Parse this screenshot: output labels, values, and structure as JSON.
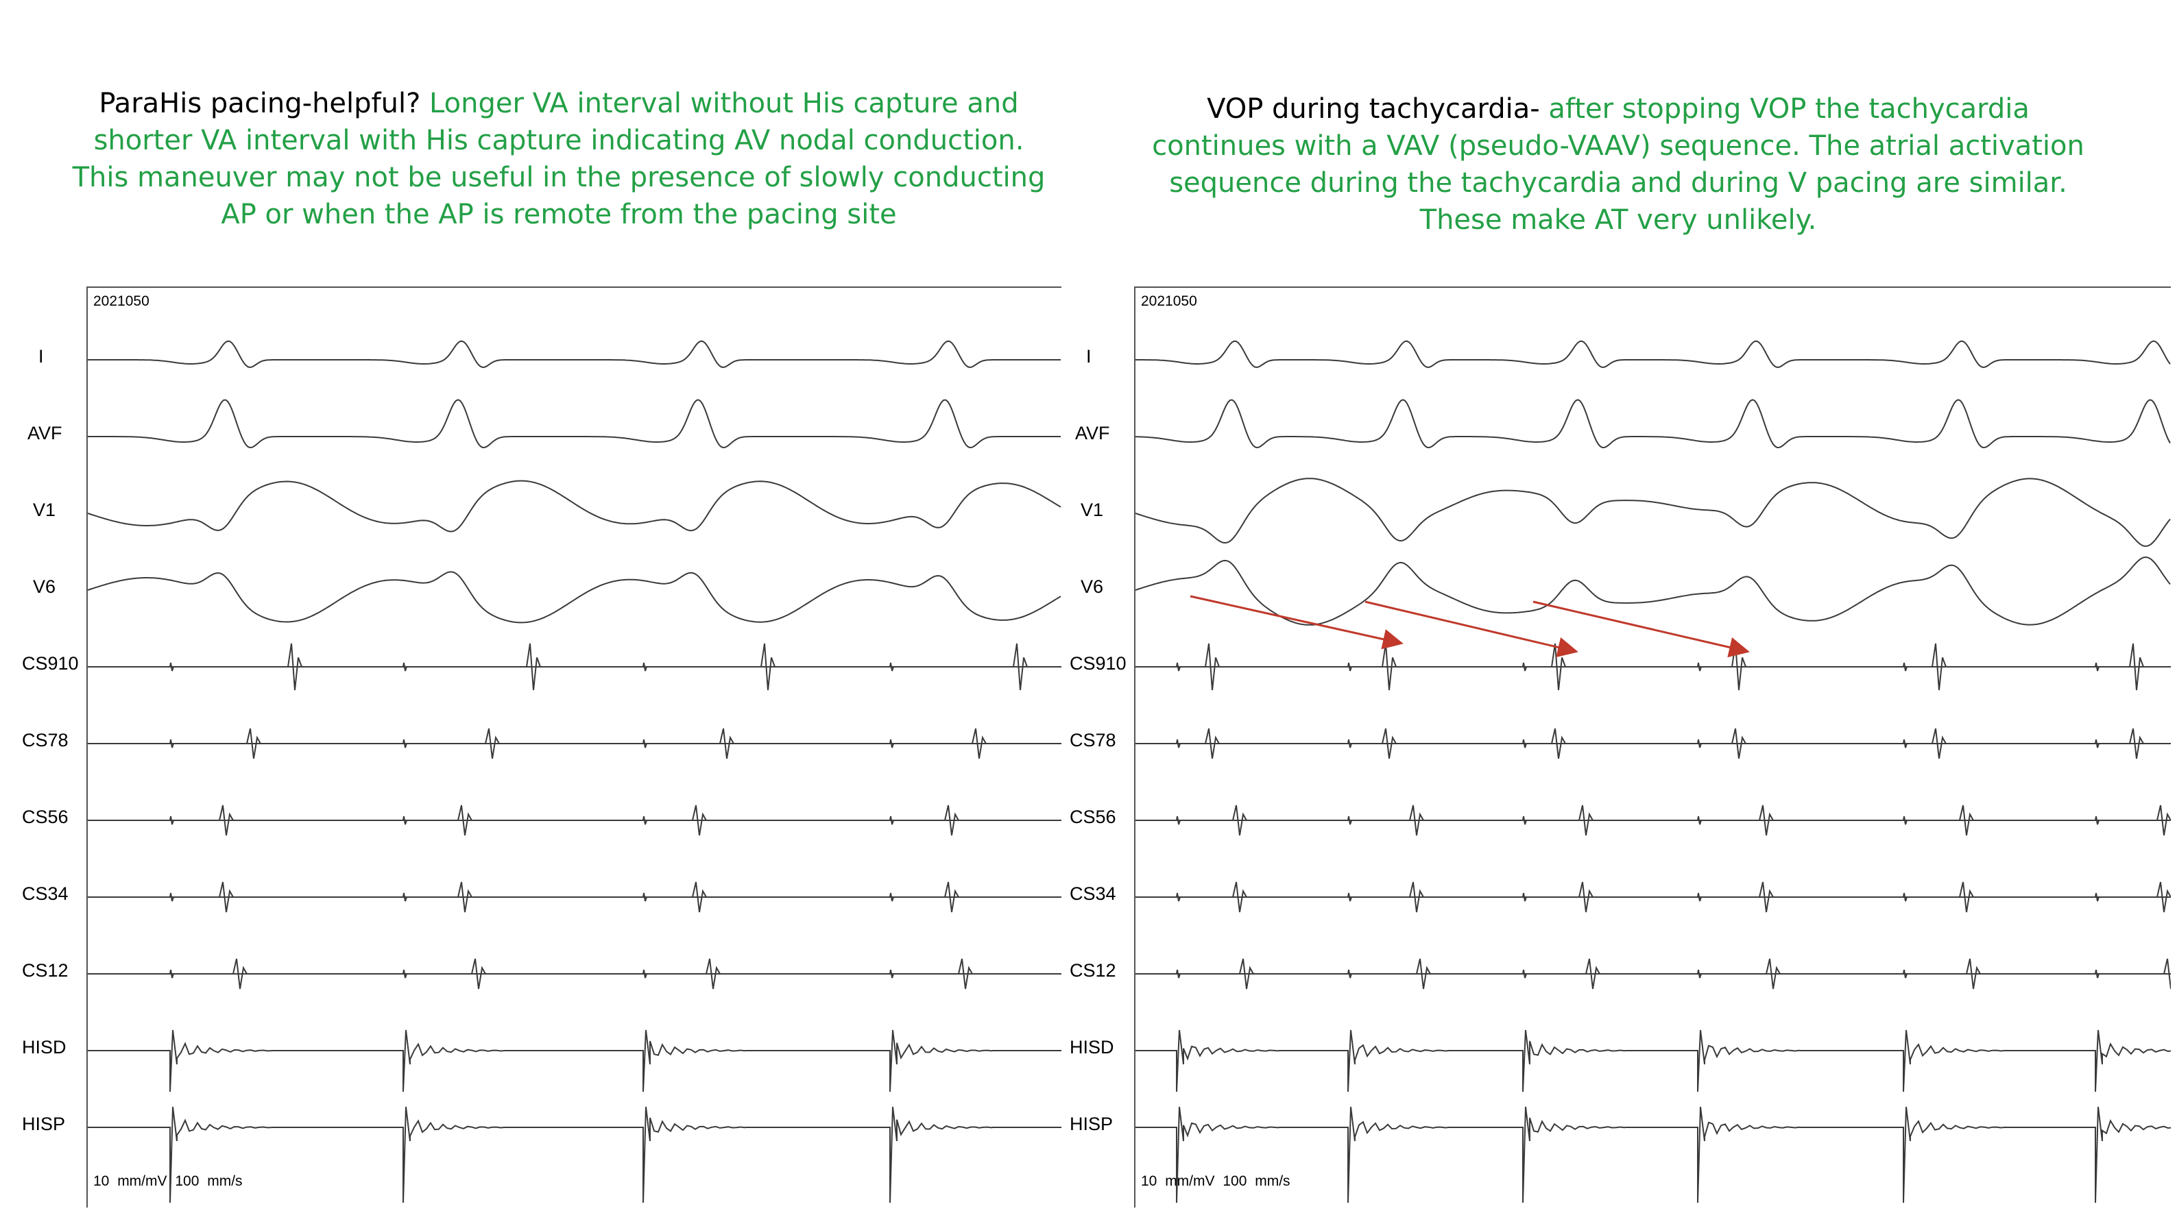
{
  "left": {
    "caption_black": "ParaHis pacing-helpful? ",
    "caption_green": "Longer VA interval without His capture and shorter VA interval with His capture indicating AV nodal conduction. This maneuver may not be useful in the presence of slowly conducting AP or when the AP is remote from the pacing site",
    "record_id": "2021050",
    "scale": "10 mm/mV  100 mm/s"
  },
  "right": {
    "caption_black": "VOP during tachycardia- ",
    "caption_green": "after stopping VOP the tachycardia continues with a VAV (pseudo-VAAV) sequence. The atrial activation sequence during the tachycardia and during V pacing are similar. These make AT very unlikely.",
    "record_id": "2021050",
    "scale": "10 mm/mV  100 mm/s"
  },
  "leads": [
    "I",
    "AVF",
    "V1",
    "V6",
    "CS910",
    "CS78",
    "CS56",
    "CS34",
    "CS12",
    "HISD",
    "HISP"
  ],
  "colors": {
    "caption_green": "#23a046",
    "trace": "#3a3a3a",
    "arrow": "#c0392b"
  }
}
